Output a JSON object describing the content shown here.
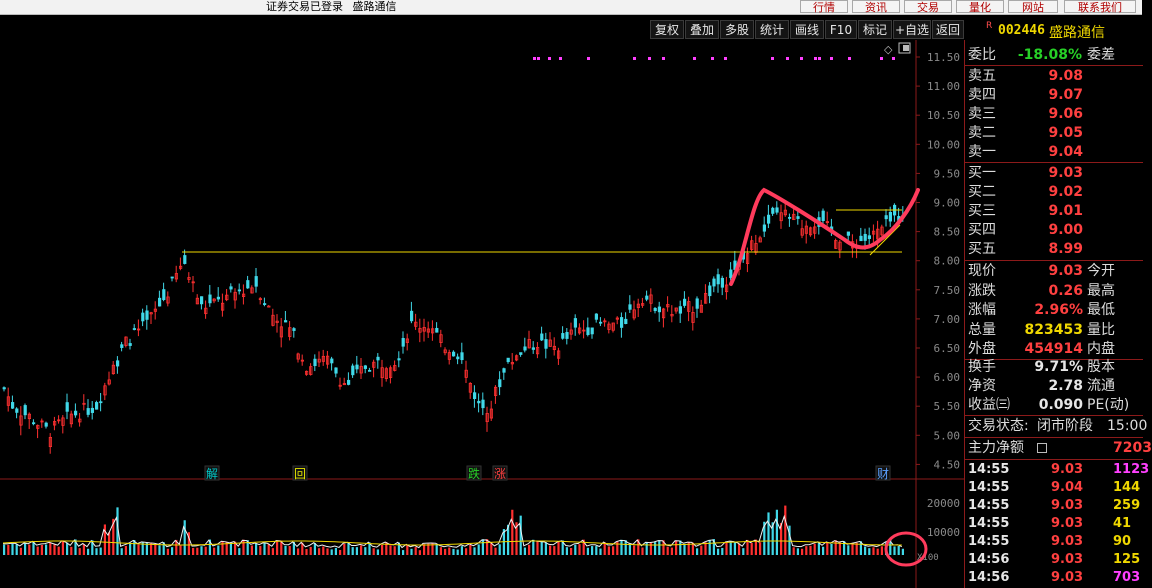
{
  "window": {
    "status_text": "证券交易已登录",
    "stock_title": "盛路通信"
  },
  "top_buttons": [
    "行情",
    "资讯",
    "交易",
    "量化",
    "网站",
    "联系我们"
  ],
  "toolbar": [
    "复权",
    "叠加",
    "多股",
    "统计",
    "画线",
    "F10",
    "标记",
    "+自选",
    "返回"
  ],
  "stock": {
    "flag": "R",
    "code": "002446",
    "name": "盛路通信"
  },
  "chart": {
    "price_axis": [
      "11.50",
      "11.00",
      "10.50",
      "10.00",
      "9.50",
      "9.00",
      "8.50",
      "8.00",
      "7.50",
      "7.00",
      "6.50",
      "6.00",
      "5.50",
      "5.00",
      "4.50"
    ],
    "volume_axis": [
      "20000",
      "10000"
    ],
    "volume_unit": "X100",
    "markers": [
      {
        "label": "解",
        "color": "#00c8c8"
      },
      {
        "label": "回",
        "color": "#e6e600"
      },
      {
        "label": "跌",
        "color": "#27d027"
      },
      {
        "label": "涨",
        "color": "#ff4040"
      },
      {
        "label": "财",
        "color": "#5aa0ff"
      }
    ],
    "colors": {
      "up": "#ff3030",
      "down": "#40d8e8",
      "guide": "#f0d800",
      "annotation": "#ff3b5c",
      "event_dots": "#ff40ff"
    }
  },
  "order_book": {
    "weibi_label": "委比",
    "weibi_value": "-18.08%",
    "weicha_label": "委差",
    "sell": [
      {
        "label": "卖五",
        "price": "9.08"
      },
      {
        "label": "卖四",
        "price": "9.07"
      },
      {
        "label": "卖三",
        "price": "9.06"
      },
      {
        "label": "卖二",
        "price": "9.05"
      },
      {
        "label": "卖一",
        "price": "9.04"
      }
    ],
    "buy": [
      {
        "label": "买一",
        "price": "9.03"
      },
      {
        "label": "买二",
        "price": "9.02"
      },
      {
        "label": "买三",
        "price": "9.01"
      },
      {
        "label": "买四",
        "price": "9.00"
      },
      {
        "label": "买五",
        "price": "8.99"
      }
    ]
  },
  "quote": [
    {
      "label": "现价",
      "value": "9.03",
      "label2": "今开",
      "color": "red"
    },
    {
      "label": "涨跌",
      "value": "0.26",
      "label2": "最高",
      "color": "red"
    },
    {
      "label": "涨幅",
      "value": "2.96%",
      "label2": "最低",
      "color": "red"
    },
    {
      "label": "总量",
      "value": "823453",
      "label2": "量比",
      "color": "yellow"
    },
    {
      "label": "外盘",
      "value": "454914",
      "label2": "内盘",
      "color": "red"
    },
    {
      "label": "换手",
      "value": "9.71%",
      "label2": "股本",
      "color": "white"
    },
    {
      "label": "净资",
      "value": "2.78",
      "label2": "流通",
      "color": "white"
    },
    {
      "label": "收益㈢",
      "value": "0.090",
      "label2": "PE(动)",
      "color": "white"
    }
  ],
  "trade_status": {
    "label": "交易状态:",
    "value": "闭市阶段",
    "time": "15:00"
  },
  "main_flow": {
    "label": "主力净额",
    "value": "7203"
  },
  "ticks": [
    {
      "time": "14:55",
      "price": "9.03",
      "vol": "1123",
      "pc": "red",
      "vc": "magenta"
    },
    {
      "time": "14:55",
      "price": "9.04",
      "vol": "144",
      "pc": "red",
      "vc": "yellow"
    },
    {
      "time": "14:55",
      "price": "9.03",
      "vol": "259",
      "pc": "red",
      "vc": "yellow"
    },
    {
      "time": "14:55",
      "price": "9.03",
      "vol": "41",
      "pc": "red",
      "vc": "yellow"
    },
    {
      "time": "14:55",
      "price": "9.03",
      "vol": "90",
      "pc": "red",
      "vc": "yellow"
    },
    {
      "time": "14:56",
      "price": "9.03",
      "vol": "125",
      "pc": "red",
      "vc": "yellow"
    },
    {
      "time": "14:56",
      "price": "9.03",
      "vol": "703",
      "pc": "red",
      "vc": "magenta"
    }
  ]
}
